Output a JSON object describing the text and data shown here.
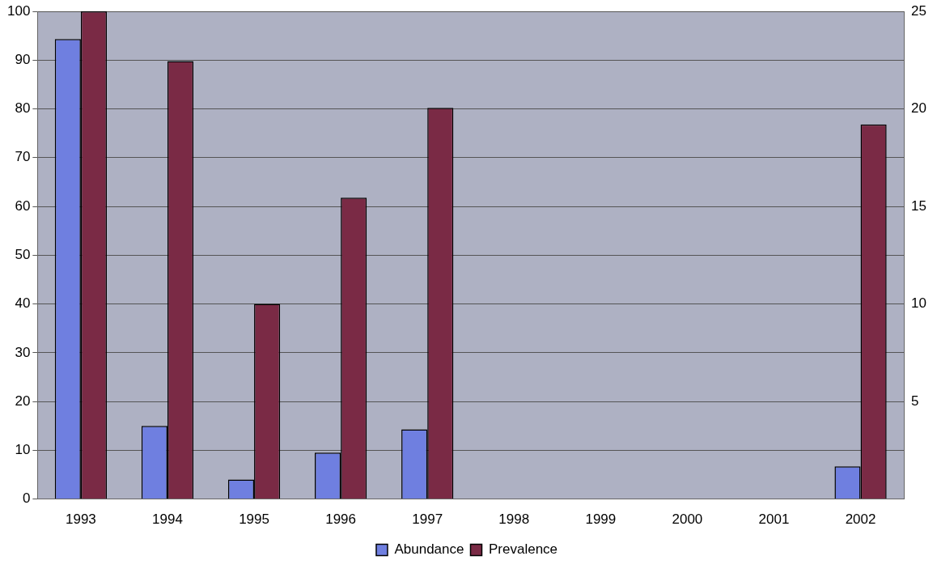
{
  "chart_data": {
    "type": "bar",
    "categories": [
      "1993",
      "1994",
      "1995",
      "1996",
      "1997",
      "1998",
      "1999",
      "2000",
      "2001",
      "2002"
    ],
    "series": [
      {
        "name": "Abundance",
        "color": "#6f7fe0",
        "values": [
          94.3,
          15,
          4,
          9.5,
          14.3,
          null,
          null,
          null,
          null,
          6.7
        ]
      },
      {
        "name": "Prevalence",
        "color": "#7a2a45",
        "values": [
          100,
          89.8,
          40,
          61.8,
          80.2,
          null,
          null,
          null,
          null,
          76.8
        ]
      }
    ],
    "ylim": [
      0,
      100
    ],
    "yticks": [
      0,
      10,
      20,
      30,
      40,
      50,
      60,
      70,
      80,
      90,
      100
    ],
    "y2lim": [
      0,
      25
    ],
    "y2ticks": [
      {
        "value": 0,
        "label": null
      },
      5,
      10,
      15,
      20,
      25
    ],
    "grid": "y",
    "legend": "bottom"
  }
}
